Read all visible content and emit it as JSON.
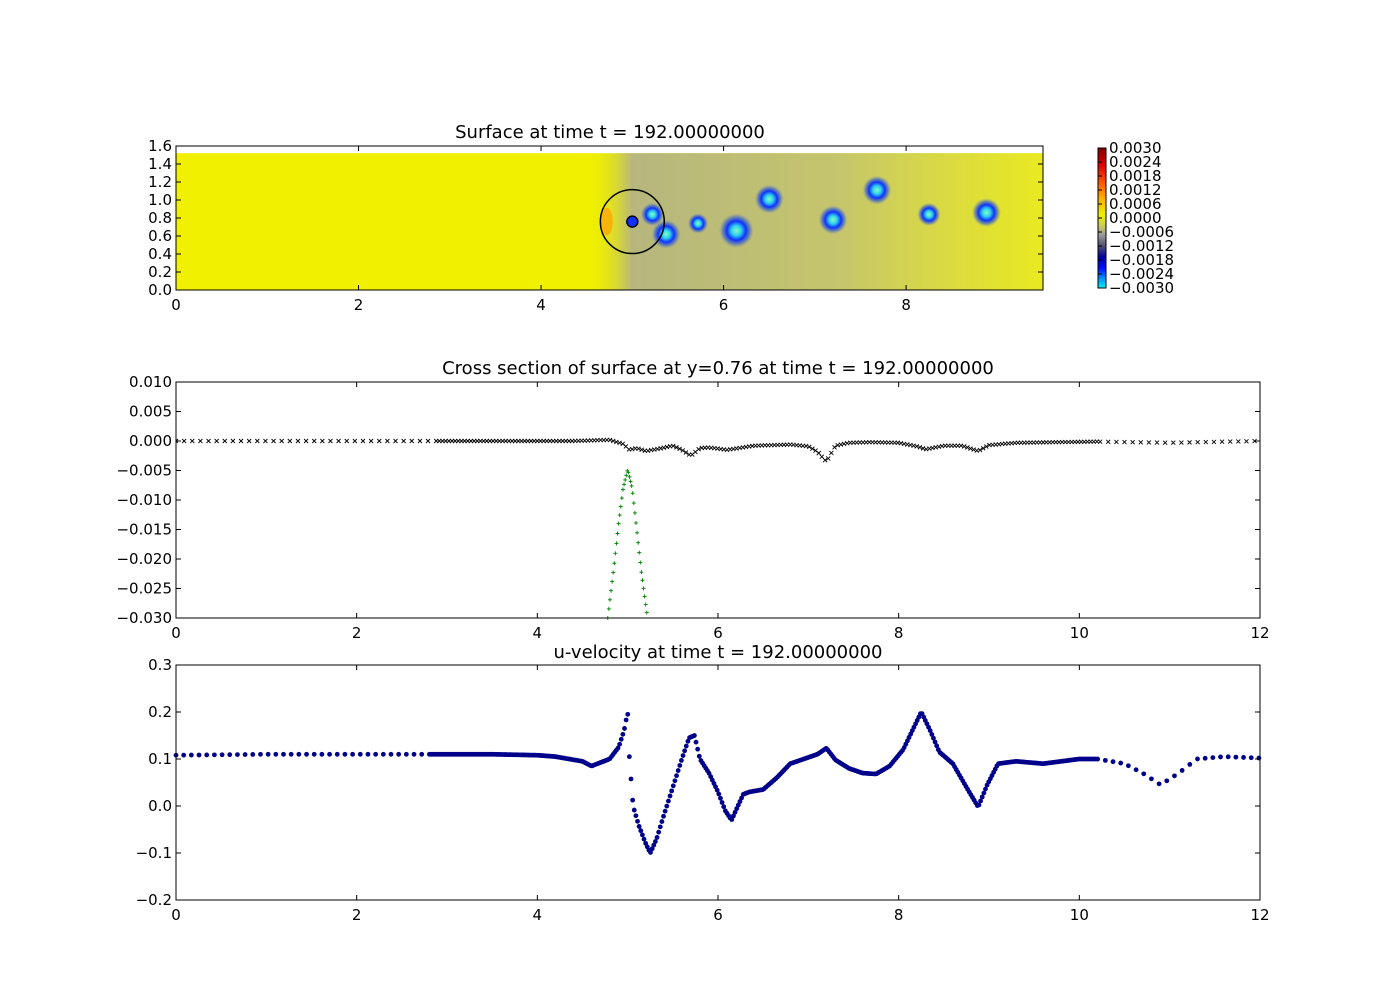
{
  "chart_data": [
    {
      "type": "heatmap",
      "title": "Surface at time t =   192.00000000",
      "xlim": [
        0,
        9.5
      ],
      "ylim": [
        0,
        1.6
      ],
      "xticks": [
        "0",
        "2",
        "4",
        "6",
        "8"
      ],
      "yticks": [
        "0.0",
        "0.2",
        "0.4",
        "0.6",
        "0.8",
        "1.0",
        "1.2",
        "1.4",
        "1.6"
      ],
      "colorbar": {
        "min": -0.003,
        "max": 0.003,
        "ticks": [
          "0.0030",
          "0.0024",
          "0.0018",
          "0.0012",
          "0.0006",
          "0.0000",
          "−0.0006",
          "−0.0012",
          "−0.0018",
          "−0.0024",
          "−0.0030"
        ]
      },
      "background_value": 0.0,
      "wake_region_x": [
        4.8,
        9.5
      ],
      "obstacle": {
        "center": [
          5.0,
          0.76
        ],
        "radius": 0.35,
        "inner_radius": 0.06
      },
      "vortices": [
        {
          "x": 5.22,
          "y": 0.84,
          "r": 0.08
        },
        {
          "x": 5.37,
          "y": 0.62,
          "r": 0.1
        },
        {
          "x": 5.72,
          "y": 0.74,
          "r": 0.07
        },
        {
          "x": 6.14,
          "y": 0.66,
          "r": 0.12
        },
        {
          "x": 6.5,
          "y": 1.01,
          "r": 0.1
        },
        {
          "x": 7.2,
          "y": 0.78,
          "r": 0.1
        },
        {
          "x": 7.68,
          "y": 1.11,
          "r": 0.1
        },
        {
          "x": 8.25,
          "y": 0.84,
          "r": 0.08
        },
        {
          "x": 8.88,
          "y": 0.86,
          "r": 0.1
        }
      ],
      "colors": {
        "background": "#f0f000",
        "wake": "#b9b981",
        "vortex": "#1020e0",
        "core": "#40e0d0"
      }
    },
    {
      "type": "scatter",
      "title": "Cross section of surface at y=0.76 at time t =   192.00000000",
      "xlim": [
        0,
        12
      ],
      "ylim": [
        -0.03,
        0.01
      ],
      "xticks": [
        "0",
        "2",
        "4",
        "6",
        "8",
        "10",
        "12"
      ],
      "yticks": [
        "0.010",
        "0.005",
        "0.000",
        "−0.005",
        "−0.010",
        "−0.015",
        "−0.020",
        "−0.025",
        "−0.030"
      ],
      "series": [
        {
          "marker": "x",
          "color": "#000000",
          "dense_range": [
            2.8,
            10.2
          ],
          "x": [
            0.0,
            2.8,
            4.4,
            4.6,
            4.8,
            4.95,
            5.02,
            5.1,
            5.2,
            5.35,
            5.5,
            5.6,
            5.7,
            5.8,
            5.9,
            6.1,
            6.4,
            6.8,
            7.0,
            7.1,
            7.2,
            7.3,
            7.45,
            7.7,
            8.0,
            8.2,
            8.3,
            8.5,
            8.7,
            8.8,
            8.88,
            9.0,
            9.3,
            10.2,
            11.0,
            12.0
          ],
          "y": [
            0.0,
            0.0,
            0.0,
            0.0001,
            0.0002,
            -0.0005,
            -0.0015,
            -0.0012,
            -0.0017,
            -0.0013,
            -0.0008,
            -0.0015,
            -0.0025,
            -0.0012,
            -0.0011,
            -0.0015,
            -0.0008,
            -0.0006,
            -0.0009,
            -0.0018,
            -0.0035,
            -0.0008,
            -0.0003,
            -0.0002,
            -0.0003,
            -0.0009,
            -0.0014,
            -0.0008,
            -0.0008,
            -0.0013,
            -0.0017,
            -0.0007,
            -0.0003,
            -0.0001,
            -0.0003,
            0.0
          ]
        },
        {
          "marker": "+",
          "color": "#008000",
          "x": [
            4.78,
            4.85,
            4.9,
            4.95,
            5.0,
            5.05,
            5.1,
            5.15,
            5.22
          ],
          "y": [
            -0.03,
            -0.021,
            -0.014,
            -0.008,
            -0.0048,
            -0.008,
            -0.015,
            -0.022,
            -0.03
          ]
        }
      ]
    },
    {
      "type": "scatter",
      "title": "u-velocity at time t =   192.00000000",
      "xlim": [
        0,
        12
      ],
      "ylim": [
        -0.2,
        0.3
      ],
      "xticks": [
        "0",
        "2",
        "4",
        "6",
        "8",
        "10",
        "12"
      ],
      "yticks": [
        "0.3",
        "0.2",
        "0.1",
        "0.0",
        "−0.1",
        "−0.2"
      ],
      "series": [
        {
          "marker": "o",
          "color": "#00008b",
          "dense_range": [
            2.8,
            10.2
          ],
          "x": [
            0.0,
            1.0,
            2.0,
            2.8,
            3.5,
            4.0,
            4.2,
            4.5,
            4.6,
            4.8,
            4.9,
            4.96,
            5.0,
            5.02,
            5.06,
            5.12,
            5.2,
            5.25,
            5.32,
            5.4,
            5.5,
            5.6,
            5.68,
            5.74,
            5.8,
            5.9,
            6.0,
            6.08,
            6.15,
            6.22,
            6.28,
            6.35,
            6.5,
            6.65,
            6.8,
            6.95,
            7.1,
            7.2,
            7.3,
            7.45,
            7.6,
            7.75,
            7.9,
            8.05,
            8.15,
            8.25,
            8.35,
            8.45,
            8.6,
            8.75,
            8.88,
            8.98,
            9.1,
            9.3,
            9.6,
            10.0,
            10.2,
            10.5,
            10.7,
            10.9,
            11.1,
            11.3,
            11.6,
            12.0
          ],
          "y": [
            0.108,
            0.11,
            0.11,
            0.11,
            0.11,
            0.108,
            0.105,
            0.095,
            0.085,
            0.1,
            0.125,
            0.16,
            0.2,
            0.1,
            0.0,
            -0.04,
            -0.08,
            -0.1,
            -0.07,
            -0.02,
            0.04,
            0.1,
            0.145,
            0.15,
            0.1,
            0.07,
            0.03,
            -0.01,
            -0.03,
            0.0,
            0.025,
            0.03,
            0.035,
            0.06,
            0.09,
            0.1,
            0.11,
            0.123,
            0.098,
            0.08,
            0.07,
            0.068,
            0.085,
            0.12,
            0.16,
            0.2,
            0.16,
            0.115,
            0.09,
            0.04,
            -0.002,
            0.045,
            0.09,
            0.095,
            0.09,
            0.1,
            0.1,
            0.09,
            0.07,
            0.045,
            0.07,
            0.1,
            0.105,
            0.102
          ]
        }
      ]
    }
  ]
}
